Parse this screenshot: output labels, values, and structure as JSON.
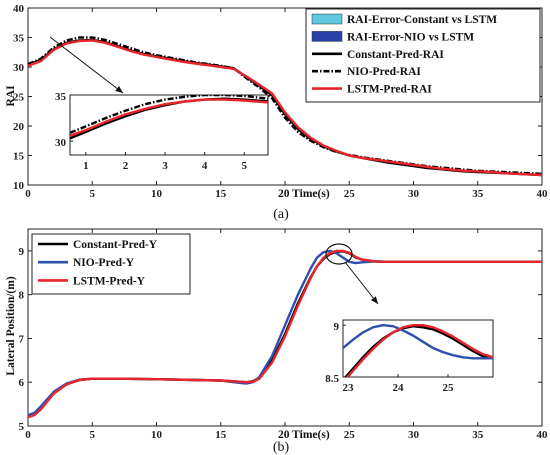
{
  "chart_data": [
    {
      "type": "line",
      "caption": "(a)",
      "ylabel": "RAI",
      "xlabel": "Time(s)",
      "xlim": [
        0,
        40
      ],
      "ylim": [
        10,
        40
      ],
      "xticks": [
        0,
        5,
        10,
        15,
        20,
        25,
        30,
        35,
        40
      ],
      "yticks": [
        10,
        15,
        20,
        25,
        30,
        35,
        40
      ],
      "x": [
        0,
        1,
        2,
        3,
        4,
        5,
        6,
        7,
        8,
        9,
        10,
        11,
        12,
        13,
        14,
        15,
        16,
        17,
        18,
        19,
        20,
        21,
        22,
        23,
        24,
        25,
        26,
        27,
        28,
        29,
        30,
        31,
        32,
        33,
        34,
        35,
        36,
        37,
        38,
        39,
        40
      ],
      "legend": [
        {
          "label": "RAI-Error-Constant vs LSTM",
          "color": "#5ec8e0",
          "kind": "patch"
        },
        {
          "label": "RAI-Error-NIO vs LSTM",
          "color": "#2840a8",
          "kind": "patch"
        },
        {
          "label": "Constant-Pred-RAI",
          "color": "#000000",
          "kind": "solid"
        },
        {
          "label": "NIO-Pred-RAI",
          "color": "#000000",
          "kind": "dashdot"
        },
        {
          "label": "LSTM-Pred-RAI",
          "color": "#e8242c",
          "kind": "solid"
        }
      ],
      "series": [
        {
          "name": "Constant-Pred-RAI",
          "color": "#000000",
          "style": "solid",
          "values": [
            30.3,
            31.2,
            33.0,
            34.1,
            34.5,
            34.6,
            34.2,
            33.5,
            32.8,
            32.2,
            31.8,
            31.4,
            31.0,
            30.7,
            30.4,
            30.1,
            29.8,
            28.3,
            26.8,
            25.2,
            22.0,
            19.5,
            17.8,
            16.6,
            15.7,
            15.0,
            14.6,
            14.2,
            13.8,
            13.5,
            13.2,
            12.9,
            12.7,
            12.5,
            12.3,
            12.2,
            12.1,
            12.0,
            11.9,
            11.8,
            11.7
          ]
        },
        {
          "name": "NIO-Pred-RAI",
          "color": "#000000",
          "style": "dashdot",
          "values": [
            30.5,
            31.4,
            33.3,
            34.5,
            35.0,
            35.0,
            34.6,
            33.9,
            33.2,
            32.5,
            32.0,
            31.6,
            31.2,
            30.8,
            30.5,
            30.2,
            29.8,
            28.1,
            26.5,
            24.7,
            21.4,
            19.0,
            17.5,
            16.4,
            15.6,
            15.1,
            14.7,
            14.4,
            14.1,
            13.8,
            13.5,
            13.2,
            13.0,
            12.8,
            12.6,
            12.4,
            12.3,
            12.2,
            12.1,
            12.0,
            11.9
          ]
        },
        {
          "name": "LSTM-Pred-RAI",
          "color": "#e8242c",
          "style": "solid",
          "values": [
            30.2,
            31.0,
            32.9,
            34.0,
            34.4,
            34.5,
            34.1,
            33.4,
            32.7,
            32.1,
            31.7,
            31.3,
            30.9,
            30.6,
            30.3,
            30.0,
            29.7,
            28.4,
            27.0,
            25.5,
            22.3,
            19.8,
            18.0,
            16.7,
            15.8,
            15.0,
            14.6,
            14.3,
            14.0,
            13.7,
            13.4,
            13.1,
            12.8,
            12.6,
            12.4,
            12.3,
            12.2,
            12.0,
            11.9,
            11.8,
            11.7
          ]
        }
      ],
      "inset": {
        "xlim": [
          0.6,
          5.6
        ],
        "ylim": [
          28.5,
          35
        ],
        "xticks": [
          1,
          2,
          3,
          4,
          5
        ],
        "yticks": [
          30,
          35
        ],
        "x": [
          0.6,
          1.0,
          1.5,
          2.0,
          2.5,
          3.0,
          3.5,
          4.0,
          4.5,
          5.0,
          5.6
        ],
        "series": [
          {
            "name": "Constant-Pred-RAI",
            "color": "#000000",
            "style": "solid",
            "values": [
              30.3,
              31.0,
              31.9,
              32.7,
              33.4,
              33.9,
              34.3,
              34.5,
              34.6,
              34.5,
              34.3
            ]
          },
          {
            "name": "NIO-Pred-RAI",
            "color": "#000000",
            "style": "dashdot",
            "values": [
              30.9,
              31.6,
              32.5,
              33.3,
              34.0,
              34.5,
              34.8,
              35.0,
              35.0,
              34.9,
              34.6
            ]
          },
          {
            "name": "LSTM-Pred-RAI",
            "color": "#e8242c",
            "style": "solid",
            "values": [
              30.6,
              31.2,
              32.1,
              32.9,
              33.5,
              34.0,
              34.3,
              34.5,
              34.5,
              34.4,
              34.2
            ]
          }
        ]
      }
    },
    {
      "type": "line",
      "caption": "(b)",
      "ylabel": "Lateral Position/(m)",
      "xlabel": "Time(s)",
      "xlim": [
        0,
        40
      ],
      "ylim": [
        5,
        9.5
      ],
      "xticks": [
        0,
        5,
        10,
        15,
        20,
        25,
        30,
        35,
        40
      ],
      "yticks": [
        5,
        6,
        7,
        8,
        9
      ],
      "x": [
        0,
        0.5,
        1,
        2,
        3,
        4,
        5,
        7,
        10,
        13,
        15,
        16,
        17,
        17.5,
        18,
        19,
        20,
        21,
        22,
        22.5,
        23,
        23.5,
        24,
        24.5,
        25,
        25.5,
        26,
        27,
        28,
        30,
        35,
        40
      ],
      "legend": [
        {
          "label": "Constant-Pred-Y",
          "color": "#000000",
          "kind": "solid"
        },
        {
          "label": "NIO-Pred-Y",
          "color": "#2f4fb0",
          "kind": "solid"
        },
        {
          "label": "LSTM-Pred-Y",
          "color": "#e8242c",
          "kind": "solid"
        }
      ],
      "series": [
        {
          "name": "Constant-Pred-Y",
          "color": "#000000",
          "style": "solid",
          "values": [
            5.22,
            5.26,
            5.4,
            5.75,
            5.95,
            6.05,
            6.08,
            6.08,
            6.07,
            6.05,
            6.04,
            6.02,
            6.0,
            6.02,
            6.1,
            6.5,
            7.1,
            7.8,
            8.4,
            8.65,
            8.82,
            8.93,
            8.98,
            8.99,
            8.95,
            8.85,
            8.8,
            8.76,
            8.75,
            8.75,
            8.75,
            8.75
          ]
        },
        {
          "name": "NIO-Pred-Y",
          "color": "#2f4fb0",
          "style": "solid",
          "values": [
            5.25,
            5.3,
            5.45,
            5.78,
            5.97,
            6.06,
            6.08,
            6.08,
            6.07,
            6.05,
            6.04,
            6.0,
            5.97,
            6.0,
            6.12,
            6.6,
            7.3,
            8.0,
            8.6,
            8.85,
            8.97,
            9.0,
            8.95,
            8.85,
            8.75,
            8.72,
            8.74,
            8.76,
            8.75,
            8.75,
            8.75,
            8.75
          ]
        },
        {
          "name": "LSTM-Pred-Y",
          "color": "#e8242c",
          "style": "solid",
          "values": [
            5.2,
            5.25,
            5.38,
            5.74,
            5.95,
            6.05,
            6.08,
            6.08,
            6.07,
            6.05,
            6.04,
            6.02,
            6.0,
            6.01,
            6.08,
            6.45,
            7.05,
            7.75,
            8.38,
            8.65,
            8.84,
            8.95,
            9.0,
            9.0,
            8.96,
            8.86,
            8.8,
            8.76,
            8.75,
            8.75,
            8.75,
            8.75
          ]
        }
      ],
      "inset": {
        "xlim": [
          22.9,
          25.9
        ],
        "ylim": [
          8.5,
          9.05
        ],
        "xticks": [
          23,
          24,
          25
        ],
        "yticks": [
          8.5,
          9
        ],
        "x": [
          22.9,
          23.1,
          23.3,
          23.5,
          23.7,
          23.9,
          24.1,
          24.3,
          24.5,
          24.7,
          24.9,
          25.1,
          25.3,
          25.5,
          25.7,
          25.9
        ],
        "series": [
          {
            "name": "Constant-Pred-Y",
            "color": "#000000",
            "style": "solid",
            "values": [
              8.47,
              8.58,
              8.69,
              8.79,
              8.87,
              8.93,
              8.97,
              8.99,
              8.98,
              8.96,
              8.92,
              8.87,
              8.81,
              8.75,
              8.7,
              8.68
            ]
          },
          {
            "name": "NIO-Pred-Y",
            "color": "#2f4fb0",
            "style": "solid",
            "values": [
              8.78,
              8.86,
              8.93,
              8.98,
              9.0,
              8.99,
              8.95,
              8.9,
              8.84,
              8.78,
              8.74,
              8.71,
              8.69,
              8.68,
              8.68,
              8.68
            ]
          },
          {
            "name": "LSTM-Pred-Y",
            "color": "#e8242c",
            "style": "solid",
            "values": [
              8.45,
              8.56,
              8.67,
              8.77,
              8.86,
              8.93,
              8.98,
              9.0,
              9.0,
              8.98,
              8.94,
              8.89,
              8.83,
              8.77,
              8.72,
              8.69
            ]
          }
        ]
      }
    }
  ]
}
